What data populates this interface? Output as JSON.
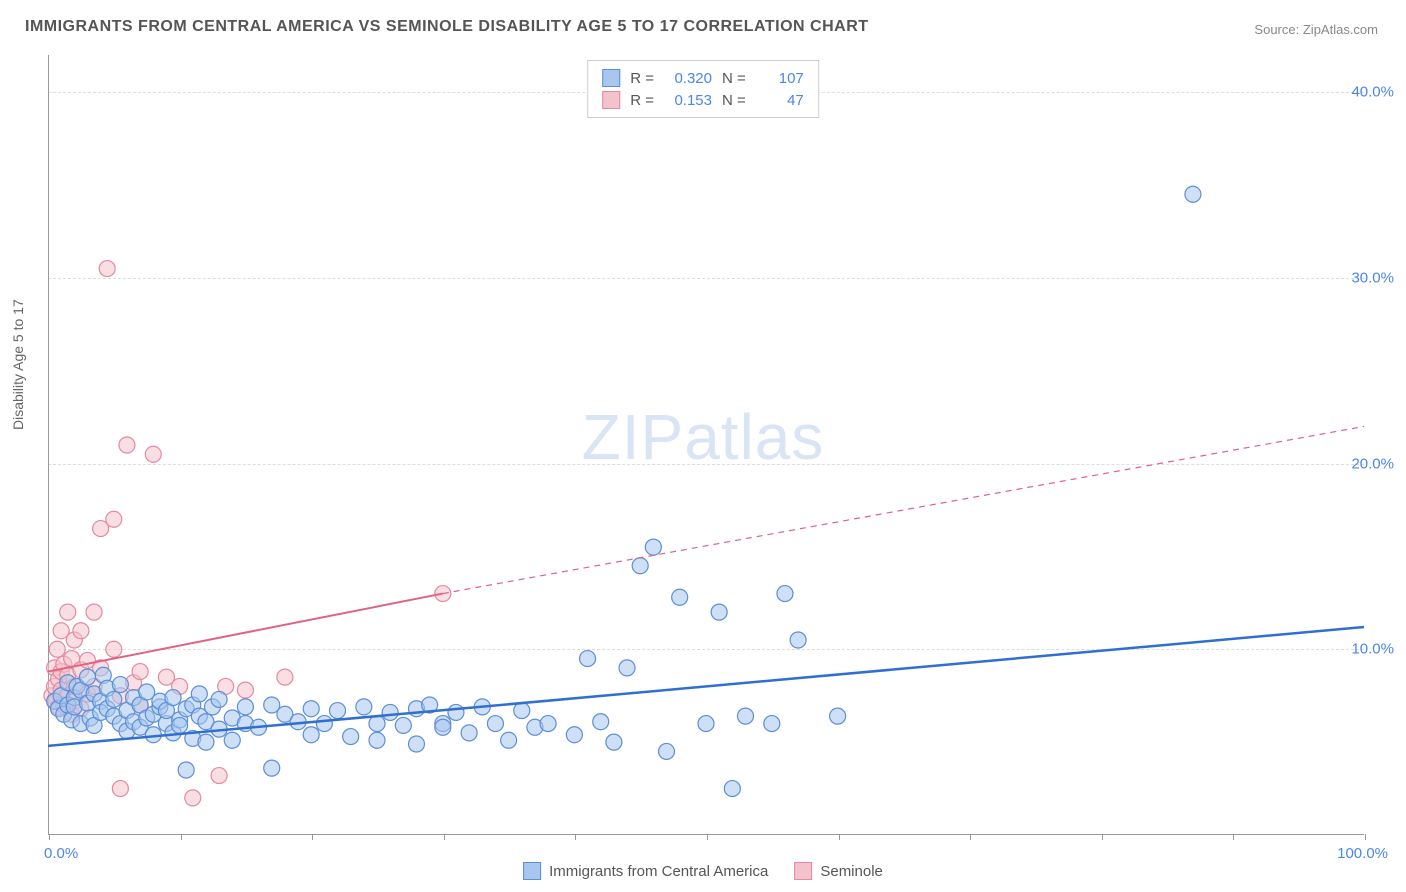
{
  "title": "IMMIGRANTS FROM CENTRAL AMERICA VS SEMINOLE DISABILITY AGE 5 TO 17 CORRELATION CHART",
  "source_label": "Source:",
  "source_value": "ZipAtlas.com",
  "ylabel": "Disability Age 5 to 17",
  "watermark_a": "ZIP",
  "watermark_b": "atlas",
  "chart": {
    "type": "scatter_with_regression",
    "background_color": "#ffffff",
    "grid_color": "#dddddd",
    "axis_color": "#999999",
    "tick_label_color": "#4a86e8",
    "title_color": "#555555",
    "title_fontsize": 16,
    "label_fontsize": 14,
    "tick_fontsize": 15,
    "xlim": [
      0,
      100
    ],
    "ylim": [
      0,
      42
    ],
    "xticks": [
      0,
      10,
      20,
      30,
      40,
      50,
      60,
      70,
      80,
      90,
      100
    ],
    "xtick_labels_shown": {
      "0": "0.0%",
      "100": "100.0%"
    },
    "yticks": [
      10,
      20,
      30,
      40
    ],
    "ytick_labels": [
      "10.0%",
      "20.0%",
      "30.0%",
      "40.0%"
    ],
    "marker_radius": 8,
    "marker_opacity": 0.55,
    "marker_stroke_width": 1.2,
    "series_blue": {
      "name": "Immigrants from Central America",
      "fill": "#a8c6ee",
      "stroke": "#5b8fd6",
      "line_color": "#2f6fd0",
      "line_width": 2.5,
      "R": "0.320",
      "N": "107",
      "regression": {
        "x1": 0,
        "y1": 4.8,
        "x2": 100,
        "y2": 11.2
      },
      "points": [
        [
          0.5,
          7.2
        ],
        [
          0.8,
          6.8
        ],
        [
          1,
          7.5
        ],
        [
          1.2,
          6.5
        ],
        [
          1.5,
          7.0
        ],
        [
          1.5,
          8.2
        ],
        [
          1.8,
          6.2
        ],
        [
          2,
          7.4
        ],
        [
          2,
          6.9
        ],
        [
          2.2,
          8.0
        ],
        [
          2.5,
          7.8
        ],
        [
          2.5,
          6.0
        ],
        [
          3,
          7.1
        ],
        [
          3,
          8.5
        ],
        [
          3.2,
          6.3
        ],
        [
          3.5,
          7.6
        ],
        [
          3.5,
          5.9
        ],
        [
          4,
          7.2
        ],
        [
          4,
          6.6
        ],
        [
          4.2,
          8.6
        ],
        [
          4.5,
          6.8
        ],
        [
          4.5,
          7.9
        ],
        [
          5,
          6.4
        ],
        [
          5,
          7.3
        ],
        [
          5.5,
          6.0
        ],
        [
          5.5,
          8.1
        ],
        [
          6,
          6.7
        ],
        [
          6,
          5.6
        ],
        [
          6.5,
          7.4
        ],
        [
          6.5,
          6.1
        ],
        [
          7,
          7.0
        ],
        [
          7,
          5.8
        ],
        [
          7.5,
          6.3
        ],
        [
          7.5,
          7.7
        ],
        [
          8,
          6.5
        ],
        [
          8,
          5.4
        ],
        [
          8.5,
          6.9
        ],
        [
          8.5,
          7.2
        ],
        [
          9,
          6.0
        ],
        [
          9,
          6.7
        ],
        [
          9.5,
          5.5
        ],
        [
          9.5,
          7.4
        ],
        [
          10,
          6.2
        ],
        [
          10,
          5.9
        ],
        [
          10.5,
          6.8
        ],
        [
          10.5,
          3.5
        ],
        [
          11,
          7.0
        ],
        [
          11,
          5.2
        ],
        [
          11.5,
          6.4
        ],
        [
          11.5,
          7.6
        ],
        [
          12,
          6.1
        ],
        [
          12,
          5.0
        ],
        [
          12.5,
          6.9
        ],
        [
          13,
          5.7
        ],
        [
          13,
          7.3
        ],
        [
          14,
          6.3
        ],
        [
          14,
          5.1
        ],
        [
          15,
          6.9
        ],
        [
          15,
          6.0
        ],
        [
          16,
          5.8
        ],
        [
          17,
          7.0
        ],
        [
          17,
          3.6
        ],
        [
          18,
          6.5
        ],
        [
          19,
          6.1
        ],
        [
          20,
          6.8
        ],
        [
          20,
          5.4
        ],
        [
          21,
          6.0
        ],
        [
          22,
          6.7
        ],
        [
          23,
          5.3
        ],
        [
          24,
          6.9
        ],
        [
          25,
          6.0
        ],
        [
          25,
          5.1
        ],
        [
          26,
          6.6
        ],
        [
          27,
          5.9
        ],
        [
          28,
          6.8
        ],
        [
          28,
          4.9
        ],
        [
          29,
          7.0
        ],
        [
          30,
          6.0
        ],
        [
          30,
          5.8
        ],
        [
          31,
          6.6
        ],
        [
          32,
          5.5
        ],
        [
          33,
          6.9
        ],
        [
          34,
          6.0
        ],
        [
          35,
          5.1
        ],
        [
          36,
          6.7
        ],
        [
          37,
          5.8
        ],
        [
          38,
          6.0
        ],
        [
          40,
          5.4
        ],
        [
          41,
          9.5
        ],
        [
          42,
          6.1
        ],
        [
          43,
          5.0
        ],
        [
          44,
          9.0
        ],
        [
          45,
          14.5
        ],
        [
          46,
          15.5
        ],
        [
          47,
          4.5
        ],
        [
          48,
          12.8
        ],
        [
          50,
          6.0
        ],
        [
          51,
          12.0
        ],
        [
          52,
          2.5
        ],
        [
          53,
          6.4
        ],
        [
          55,
          6.0
        ],
        [
          56,
          13.0
        ],
        [
          57,
          10.5
        ],
        [
          60,
          6.4
        ],
        [
          87,
          34.5
        ]
      ]
    },
    "series_pink": {
      "name": "Seminole",
      "fill": "#f4c2cc",
      "stroke": "#e58aa0",
      "line_color": "#e06284",
      "line_width": 2,
      "R": "0.153",
      "N": "47",
      "regression_solid": {
        "x1": 0,
        "y1": 8.8,
        "x2": 30,
        "y2": 13.0
      },
      "regression_dashed": {
        "x1": 30,
        "y1": 13.0,
        "x2": 100,
        "y2": 22.0
      },
      "points": [
        [
          0.3,
          7.5
        ],
        [
          0.5,
          8.0
        ],
        [
          0.5,
          9.0
        ],
        [
          0.6,
          7.2
        ],
        [
          0.7,
          10.0
        ],
        [
          0.8,
          8.4
        ],
        [
          0.8,
          6.9
        ],
        [
          1,
          11.0
        ],
        [
          1,
          7.8
        ],
        [
          1,
          8.8
        ],
        [
          1.2,
          9.2
        ],
        [
          1.2,
          7.0
        ],
        [
          1.5,
          12.0
        ],
        [
          1.5,
          8.6
        ],
        [
          1.5,
          7.5
        ],
        [
          1.8,
          9.5
        ],
        [
          1.8,
          6.5
        ],
        [
          2,
          10.5
        ],
        [
          2,
          8.0
        ],
        [
          2,
          7.2
        ],
        [
          2.5,
          11.0
        ],
        [
          2.5,
          8.9
        ],
        [
          2.5,
          6.8
        ],
        [
          3,
          7.6
        ],
        [
          3,
          9.4
        ],
        [
          3.5,
          12.0
        ],
        [
          3.5,
          8.0
        ],
        [
          4,
          16.5
        ],
        [
          4,
          9.0
        ],
        [
          4.5,
          30.5
        ],
        [
          5,
          17.0
        ],
        [
          5,
          10.0
        ],
        [
          5.5,
          7.5
        ],
        [
          5.5,
          2.5
        ],
        [
          6,
          21.0
        ],
        [
          6.5,
          8.2
        ],
        [
          7,
          8.8
        ],
        [
          7,
          7.0
        ],
        [
          8,
          20.5
        ],
        [
          9,
          8.5
        ],
        [
          10,
          8.0
        ],
        [
          11,
          2.0
        ],
        [
          13,
          3.2
        ],
        [
          13.5,
          8.0
        ],
        [
          15,
          7.8
        ],
        [
          18,
          8.5
        ],
        [
          30,
          13.0
        ]
      ]
    },
    "legend_top": {
      "border_color": "#cccccc",
      "text_color": "#555555",
      "num_color": "#4a86e8"
    },
    "legend_bottom": {
      "text_color": "#555555"
    }
  }
}
